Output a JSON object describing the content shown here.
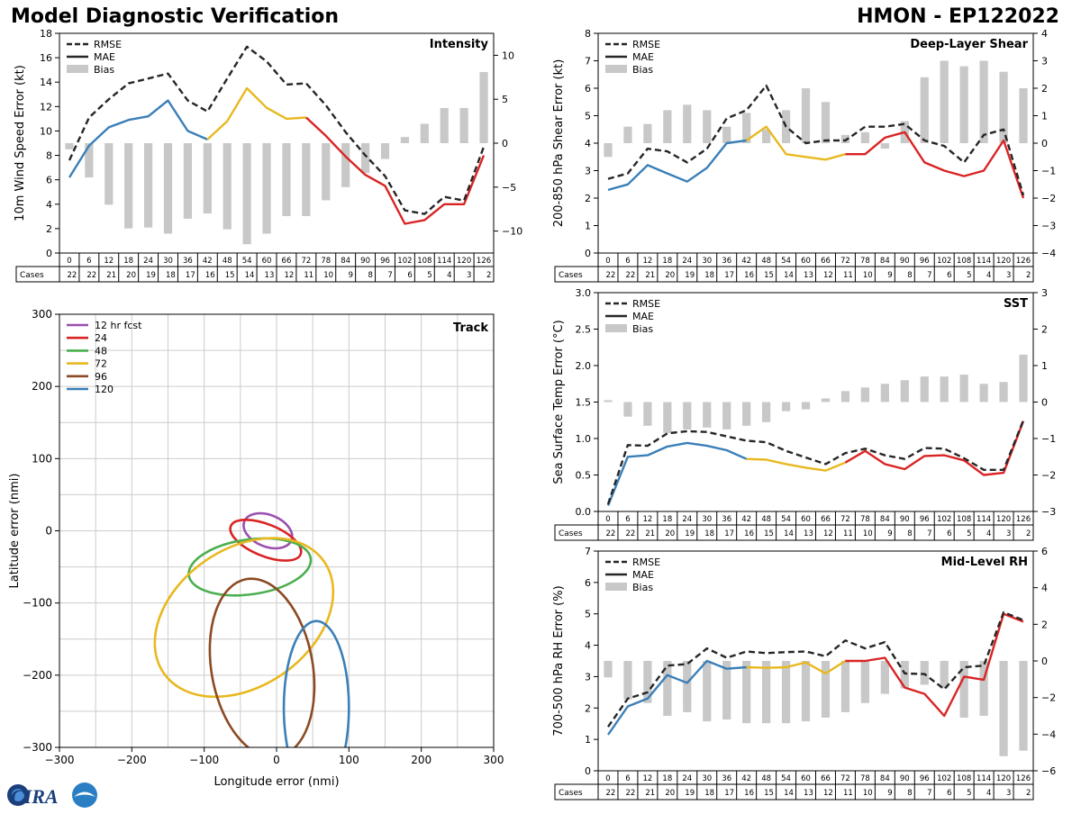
{
  "header": {
    "title_left": "Model Diagnostic Verification",
    "title_right": "HMON - EP122022"
  },
  "logo": {
    "text": "CIRA"
  },
  "legend_labels": {
    "rmse": "RMSE",
    "mae": "MAE",
    "bias": "Bias"
  },
  "cases_label": "Cases",
  "lead_hours": [
    "0",
    "6",
    "12",
    "18",
    "24",
    "30",
    "36",
    "42",
    "48",
    "54",
    "60",
    "66",
    "72",
    "78",
    "84",
    "90",
    "96",
    "102",
    "108",
    "114",
    "120",
    "126"
  ],
  "cases": [
    "22",
    "22",
    "21",
    "20",
    "19",
    "18",
    "17",
    "16",
    "15",
    "14",
    "13",
    "12",
    "11",
    "10",
    "9",
    "8",
    "7",
    "6",
    "5",
    "4",
    "3",
    "2"
  ],
  "colors": {
    "blue": "#3a7fb8",
    "yellow": "#e8b820",
    "red": "#d92424",
    "rmse": "#262626",
    "bias": "#c8c8c8"
  },
  "chart_data": [
    {
      "id": "intensity",
      "type": "line+bar",
      "title": "Intensity",
      "ylabel": "10m Wind Speed Error (kt)",
      "ylim": [
        0,
        18
      ],
      "yticks": [
        "0",
        "2",
        "4",
        "6",
        "8",
        "10",
        "12",
        "14",
        "16",
        "18"
      ],
      "y2lim": [
        -12.5,
        12.5
      ],
      "y2ticks": [
        "-10",
        "-5",
        "0",
        "5",
        "10"
      ],
      "rmse": [
        7.6,
        11.1,
        12.6,
        13.9,
        14.3,
        14.7,
        12.5,
        11.6,
        14.3,
        16.9,
        15.7,
        13.8,
        13.9,
        12.1,
        9.9,
        8.0,
        6.3,
        3.5,
        3.2,
        4.6,
        4.3,
        8.7
      ],
      "mae": [
        6.2,
        8.8,
        10.3,
        10.9,
        11.2,
        12.5,
        10.0,
        9.3,
        10.8,
        13.5,
        11.9,
        11.0,
        11.1,
        9.6,
        7.9,
        6.4,
        5.5,
        2.4,
        2.7,
        4.0,
        4.0,
        8.0
      ],
      "bias": [
        -0.7,
        -3.9,
        -7.0,
        -9.7,
        -9.6,
        -10.3,
        -8.6,
        -8.0,
        -9.8,
        -11.5,
        -10.3,
        -8.3,
        -8.3,
        -6.5,
        -5.0,
        -3.4,
        -1.8,
        0.7,
        2.2,
        4.0,
        4.0,
        8.1
      ]
    },
    {
      "id": "shear",
      "type": "line+bar",
      "title": "Deep-Layer Shear",
      "ylabel": "200-850 hPa Shear Error (kt)",
      "ylim": [
        0,
        8
      ],
      "yticks": [
        "0",
        "1",
        "2",
        "3",
        "4",
        "5",
        "6",
        "7",
        "8"
      ],
      "y2lim": [
        -4,
        4
      ],
      "y2ticks": [
        "-4",
        "-3",
        "-2",
        "-1",
        "0",
        "1",
        "2",
        "3",
        "4"
      ],
      "rmse": [
        2.7,
        2.9,
        3.8,
        3.7,
        3.3,
        3.8,
        4.9,
        5.2,
        6.1,
        4.6,
        4.0,
        4.1,
        4.1,
        4.6,
        4.6,
        4.7,
        4.1,
        3.9,
        3.3,
        4.3,
        4.5,
        2.1
      ],
      "mae": [
        2.3,
        2.5,
        3.2,
        2.9,
        2.6,
        3.1,
        4.0,
        4.1,
        4.6,
        3.6,
        3.5,
        3.4,
        3.6,
        3.6,
        4.2,
        4.4,
        3.3,
        3.0,
        2.8,
        3.0,
        4.1,
        2.0
      ],
      "bias": [
        -0.5,
        0.6,
        0.7,
        1.2,
        1.4,
        1.2,
        0.6,
        1.1,
        0.5,
        1.2,
        2.0,
        1.5,
        0.3,
        0.4,
        -0.2,
        0.8,
        2.4,
        3.0,
        2.8,
        3.0,
        2.6,
        2.0
      ]
    },
    {
      "id": "sst",
      "type": "line+bar",
      "title": "SST",
      "ylabel": "Sea Surface Temp Error (°C)",
      "ylim": [
        0,
        3.0
      ],
      "yticks": [
        "0.0",
        "0.5",
        "1.0",
        "1.5",
        "2.0",
        "2.5",
        "3.0"
      ],
      "y2lim": [
        -3,
        3
      ],
      "y2ticks": [
        "-3",
        "-2",
        "-1",
        "0",
        "1",
        "2",
        "3"
      ],
      "rmse": [
        0.1,
        0.91,
        0.9,
        1.07,
        1.1,
        1.09,
        1.03,
        0.97,
        0.95,
        0.83,
        0.74,
        0.65,
        0.8,
        0.86,
        0.77,
        0.72,
        0.87,
        0.86,
        0.73,
        0.57,
        0.57,
        1.25
      ],
      "mae": [
        0.08,
        0.75,
        0.77,
        0.89,
        0.94,
        0.9,
        0.84,
        0.72,
        0.71,
        0.65,
        0.6,
        0.56,
        0.67,
        0.83,
        0.65,
        0.58,
        0.76,
        0.77,
        0.7,
        0.5,
        0.53,
        1.24
      ],
      "bias": [
        0.05,
        -0.4,
        -0.65,
        -0.85,
        -0.75,
        -0.7,
        -0.75,
        -0.65,
        -0.55,
        -0.25,
        -0.2,
        0.1,
        0.3,
        0.4,
        0.5,
        0.6,
        0.7,
        0.7,
        0.75,
        0.5,
        0.55,
        1.3
      ]
    },
    {
      "id": "rh",
      "type": "line+bar",
      "title": "Mid-Level RH",
      "ylabel": "700-500 hPa RH Error (%)",
      "ylim": [
        0,
        7
      ],
      "yticks": [
        "0",
        "1",
        "2",
        "3",
        "4",
        "5",
        "6",
        "7"
      ],
      "y2lim": [
        -6,
        6
      ],
      "y2ticks": [
        "-6",
        "-4",
        "-2",
        "0",
        "2",
        "4",
        "6"
      ],
      "rmse": [
        1.4,
        2.3,
        2.5,
        3.35,
        3.4,
        3.9,
        3.6,
        3.8,
        3.75,
        3.78,
        3.8,
        3.65,
        4.15,
        3.9,
        4.1,
        3.1,
        3.08,
        2.6,
        3.3,
        3.35,
        5.05,
        4.8
      ],
      "mae": [
        1.15,
        2.05,
        2.3,
        3.05,
        2.8,
        3.5,
        3.25,
        3.3,
        3.28,
        3.3,
        3.45,
        3.1,
        3.5,
        3.5,
        3.6,
        2.65,
        2.45,
        1.75,
        3.0,
        2.9,
        5.0,
        4.75
      ],
      "bias": [
        -0.9,
        -2.1,
        -2.3,
        -3.0,
        -2.8,
        -3.3,
        -3.2,
        -3.4,
        -3.4,
        -3.4,
        -3.3,
        -3.1,
        -2.8,
        -2.3,
        -1.8,
        -1.5,
        -1.3,
        -1.5,
        -3.1,
        -3.0,
        -5.2,
        -4.9
      ]
    },
    {
      "id": "track",
      "type": "ellipse",
      "title": "Track",
      "xlabel": "Longitude error (nmi)",
      "ylabel": "Latitude error (nmi)",
      "xlim": [
        -300,
        300
      ],
      "ylim": [
        -300,
        300
      ],
      "xticks": [
        "−300",
        "−200",
        "−100",
        "0",
        "100",
        "200",
        "300"
      ],
      "yticks": [
        "−300",
        "−200",
        "−100",
        "0",
        "100",
        "200",
        "300"
      ],
      "series": [
        {
          "name": "12 hr fcst",
          "color": "#9b4fb0",
          "cx": -12,
          "cy": 0,
          "rx": 35,
          "ry": 22,
          "rot": 22
        },
        {
          "name": "24",
          "color": "#d92424",
          "cx": -15,
          "cy": -13,
          "rx": 52,
          "ry": 22,
          "rot": 22
        },
        {
          "name": "48",
          "color": "#4caf50",
          "cx": -37,
          "cy": -50,
          "rx": 85,
          "ry": 38,
          "rot": -8
        },
        {
          "name": "72",
          "color": "#e8b820",
          "cx": -45,
          "cy": -120,
          "rx": 135,
          "ry": 95,
          "rot": -35
        },
        {
          "name": "96",
          "color": "#8b4a23",
          "cx": -20,
          "cy": -190,
          "rx": 70,
          "ry": 125,
          "rot": -10
        },
        {
          "name": "120",
          "color": "#3a7fb8",
          "cx": 55,
          "cy": -245,
          "rx": 45,
          "ry": 120,
          "rot": 0
        }
      ]
    }
  ]
}
